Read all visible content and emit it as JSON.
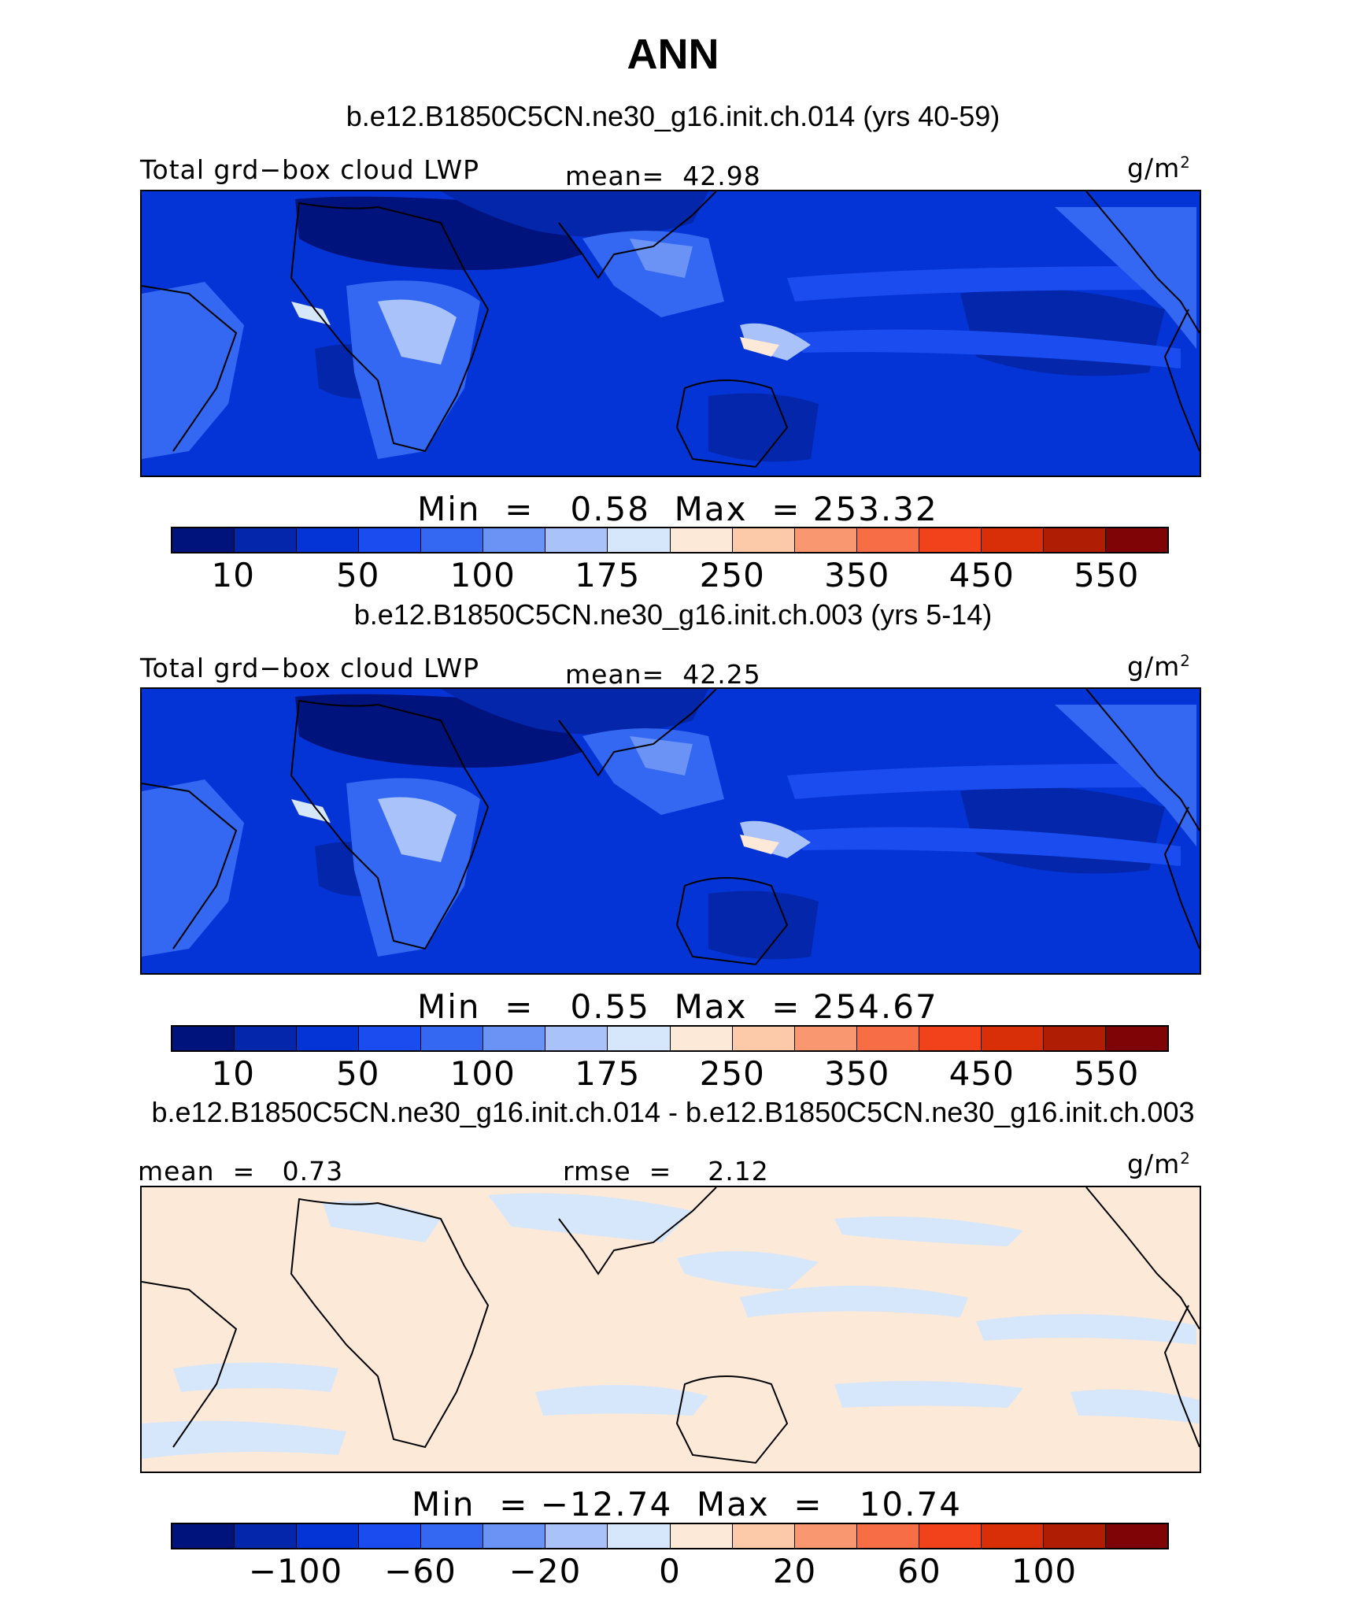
{
  "figure": {
    "title": "ANN"
  },
  "colors": {
    "scale": [
      "#00137d",
      "#0326aa",
      "#0534d6",
      "#1a4cf0",
      "#3468f2",
      "#6a93f5",
      "#a9c2f9",
      "#d6e6fb",
      "#fde9d7",
      "#fccaa8",
      "#f99870",
      "#f76d45",
      "#f2421b",
      "#d82f08",
      "#b01d05",
      "#7e0405"
    ],
    "land": "#000000"
  },
  "panels": [
    {
      "case_title": "b.e12.B1850C5CN.ne30_g16.init.ch.014 (yrs 40-59)",
      "variable": "Total grd−box cloud LWP",
      "mean_text": "mean=  42.98",
      "units": "g/m",
      "units_exp": "2",
      "minmax_text": "Min  =   0.58  Max  = 253.32",
      "ticks": [
        "10",
        "50",
        "100",
        "175",
        "250",
        "350",
        "450",
        "550"
      ]
    },
    {
      "case_title": "b.e12.B1850C5CN.ne30_g16.init.ch.003 (yrs 5-14)",
      "variable": "Total grd−box cloud LWP",
      "mean_text": "mean=  42.25",
      "units": "g/m",
      "units_exp": "2",
      "minmax_text": "Min  =   0.55  Max  = 254.67",
      "ticks": [
        "10",
        "50",
        "100",
        "175",
        "250",
        "350",
        "450",
        "550"
      ]
    },
    {
      "case_title": "b.e12.B1850C5CN.ne30_g16.init.ch.014 - b.e12.B1850C5CN.ne30_g16.init.ch.003",
      "mean_text": "mean  =   0.73",
      "rmse_text": "rmse  =    2.12",
      "units": "g/m",
      "units_exp": "2",
      "minmax_text": "Min  = −12.74  Max  =   10.74",
      "ticks": [
        "−100",
        "−60",
        "−20",
        "0",
        "20",
        "60",
        "100"
      ]
    }
  ],
  "chart_data": [
    {
      "type": "heatmap",
      "title": "b.e12.B1850C5CN.ne30_g16.init.ch.014 (yrs 40-59)",
      "variable": "Total grd−box cloud LWP",
      "units": "g/m2",
      "mean": 42.98,
      "min": 0.58,
      "max": 253.32,
      "contour_levels": [
        10,
        25,
        50,
        75,
        100,
        125,
        150,
        175,
        200,
        250,
        300,
        350,
        400,
        450,
        500,
        550
      ],
      "colorbar_ticks": [
        10,
        50,
        100,
        175,
        250,
        350,
        450,
        550
      ],
      "map_projection": "cylindrical equidistant, tropics"
    },
    {
      "type": "heatmap",
      "title": "b.e12.B1850C5CN.ne30_g16.init.ch.003 (yrs 5-14)",
      "variable": "Total grd−box cloud LWP",
      "units": "g/m2",
      "mean": 42.25,
      "min": 0.55,
      "max": 254.67,
      "contour_levels": [
        10,
        25,
        50,
        75,
        100,
        125,
        150,
        175,
        200,
        250,
        300,
        350,
        400,
        450,
        500,
        550
      ],
      "colorbar_ticks": [
        10,
        50,
        100,
        175,
        250,
        350,
        450,
        550
      ],
      "map_projection": "cylindrical equidistant, tropics"
    },
    {
      "type": "heatmap",
      "title": "b.e12.B1850C5CN.ne30_g16.init.ch.014 - b.e12.B1850C5CN.ne30_g16.init.ch.003",
      "units": "g/m2",
      "mean": 0.73,
      "rmse": 2.12,
      "min": -12.74,
      "max": 10.74,
      "contour_levels": [
        -120,
        -100,
        -80,
        -60,
        -40,
        -20,
        -10,
        0,
        10,
        20,
        40,
        60,
        80,
        100,
        120
      ],
      "colorbar_ticks": [
        -100,
        -60,
        -20,
        0,
        20,
        60,
        100
      ],
      "map_projection": "cylindrical equidistant, tropics"
    }
  ]
}
